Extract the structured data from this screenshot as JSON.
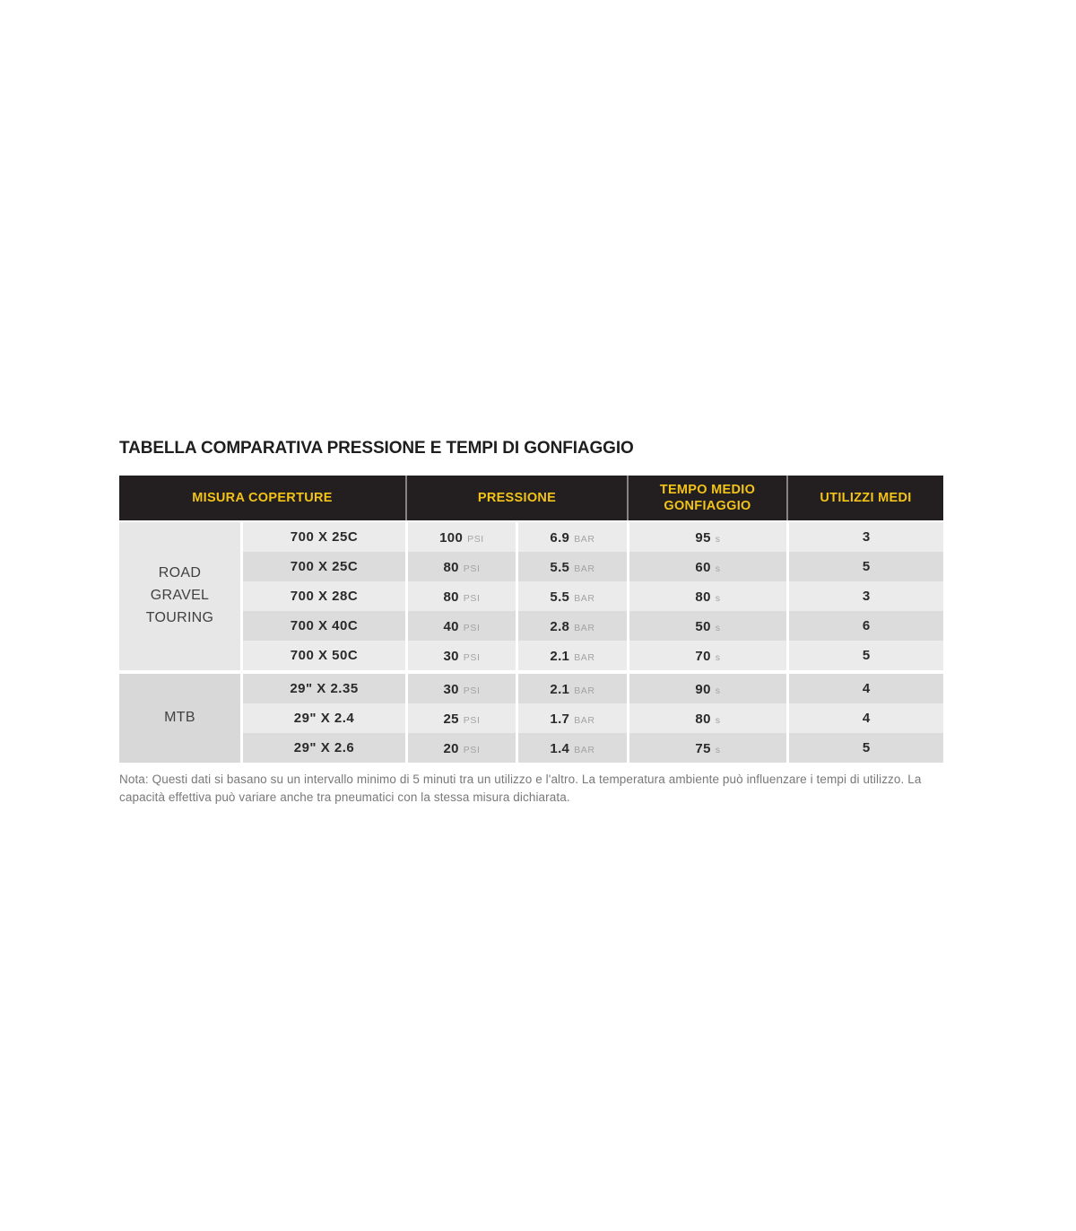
{
  "title": "TABELLA COMPARATIVA PRESSIONE E TEMPI DI GONFIAGGIO",
  "table": {
    "headers": {
      "misura": "MISURA COPERTURE",
      "pressione": "PRESSIONE",
      "tempo": "TEMPO MEDIO\nGONFIAGGIO",
      "utilizzi": "UTILIZZI MEDI"
    },
    "units": {
      "pressure_psi": "PSI",
      "pressure_bar": "BAR",
      "seconds": "s"
    },
    "groups": [
      {
        "label": "ROAD\nGRAVEL\nTOURING",
        "rows": [
          {
            "size": "700 X 25C",
            "psi": "100",
            "bar": "6.9",
            "tempo_s": "95",
            "utilizzi": "3"
          },
          {
            "size": "700 X 25C",
            "psi": "80",
            "bar": "5.5",
            "tempo_s": "60",
            "utilizzi": "5"
          },
          {
            "size": "700 X 28C",
            "psi": "80",
            "bar": "5.5",
            "tempo_s": "80",
            "utilizzi": "3"
          },
          {
            "size": "700 X 40C",
            "psi": "40",
            "bar": "2.8",
            "tempo_s": "50",
            "utilizzi": "6"
          },
          {
            "size": "700 X 50C",
            "psi": "30",
            "bar": "2.1",
            "tempo_s": "70",
            "utilizzi": "5"
          }
        ]
      },
      {
        "label": "MTB",
        "rows": [
          {
            "size": "29\" X 2.35",
            "psi": "30",
            "bar": "2.1",
            "tempo_s": "90",
            "utilizzi": "4"
          },
          {
            "size": "29\" X 2.4",
            "psi": "25",
            "bar": "1.7",
            "tempo_s": "80",
            "utilizzi": "4"
          },
          {
            "size": "29\" X 2.6",
            "psi": "20",
            "bar": "1.4",
            "tempo_s": "75",
            "utilizzi": "5"
          }
        ]
      }
    ]
  },
  "note": "Nota: Questi dati si basano su un intervallo minimo di 5 minuti tra un utilizzo e l'altro. La temperatura ambiente può influenzare i tempi di utilizzo. La capacità effettiva può variare anche tra pneumatici con la stessa misura dichiarata.",
  "colors": {
    "header_bg": "#231e1f",
    "accent_yellow": "#f2c319",
    "row_light": "#ebebeb",
    "row_dark": "#dcdcdc",
    "group_road_bg": "#e7e7e7",
    "group_mtb_bg": "#d8d8d8"
  }
}
